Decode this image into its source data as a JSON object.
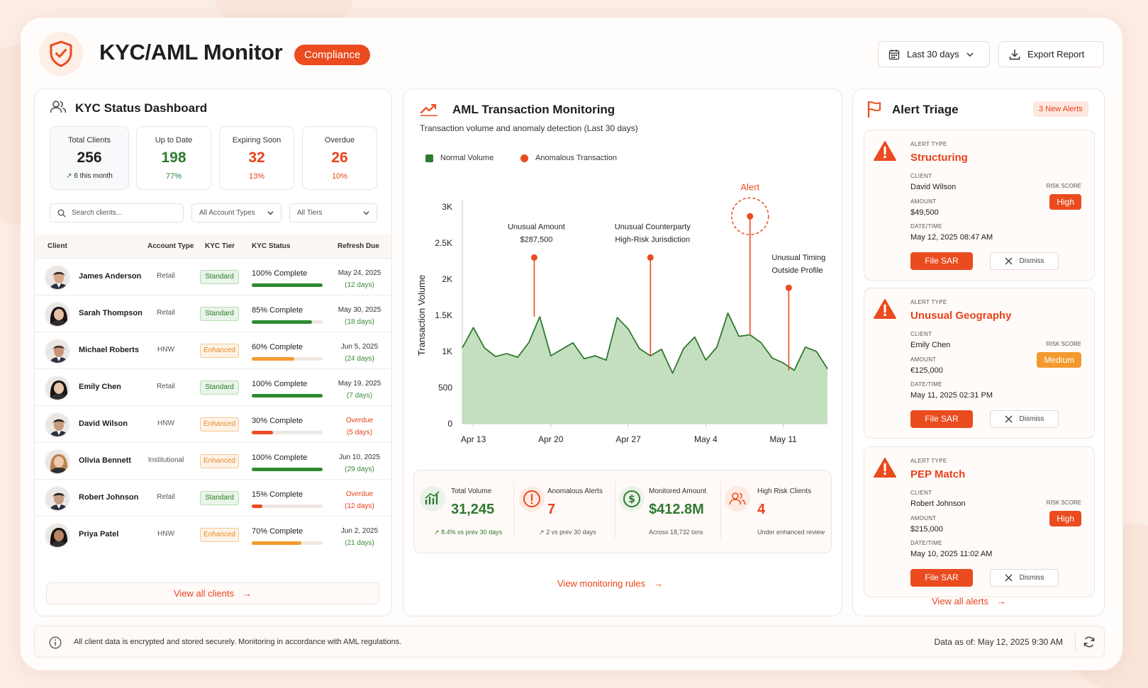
{
  "header": {
    "title": "KYC/AML Monitor",
    "badge": "Compliance",
    "date_range": "Last 30 days",
    "export": "Export Report"
  },
  "kyc": {
    "title": "KYC Status Dashboard",
    "stats": [
      {
        "label": "Total Clients",
        "value": "256",
        "sub": "6 this month"
      },
      {
        "label": "Up to Date",
        "value": "198",
        "sub": "77%"
      },
      {
        "label": "Expiring Soon",
        "value": "32",
        "sub": "13%"
      },
      {
        "label": "Overdue",
        "value": "26",
        "sub": "10%"
      }
    ],
    "search_placeholder": "Search clients...",
    "filter_type": "All Account Types",
    "filter_tier": "All Tiers",
    "columns": [
      "Client",
      "Account Type",
      "KYC Tier",
      "KYC Status",
      "Refresh Due"
    ],
    "rows": [
      {
        "name": "James Anderson",
        "type": "Retail",
        "tier": "Standard",
        "status": "100% Complete",
        "progress": 1.0,
        "due": "May 24, 2025",
        "due_sub": "(12 days)",
        "overdue": false
      },
      {
        "name": "Sarah Thompson",
        "type": "Retail",
        "tier": "Standard",
        "status": "85% Complete",
        "progress": 0.85,
        "due": "May 30, 2025",
        "due_sub": "(18 days)",
        "overdue": false
      },
      {
        "name": "Michael Roberts",
        "type": "HNW",
        "tier": "Enhanced",
        "status": "60% Complete",
        "progress": 0.6,
        "due": "Jun 5, 2025",
        "due_sub": "(24 days)",
        "overdue": false
      },
      {
        "name": "Emily Chen",
        "type": "Retail",
        "tier": "Standard",
        "status": "100% Complete",
        "progress": 1.0,
        "due": "May 19, 2025",
        "due_sub": "(7 days)",
        "overdue": false
      },
      {
        "name": "David Wilson",
        "type": "HNW",
        "tier": "Enhanced",
        "status": "30% Complete",
        "progress": 0.3,
        "due": "Overdue",
        "due_sub": "(5 days)",
        "overdue": true
      },
      {
        "name": "Olivia Bennett",
        "type": "Institutional",
        "tier": "Enhanced",
        "status": "100% Complete",
        "progress": 1.0,
        "due": "Jun 10, 2025",
        "due_sub": "(29 days)",
        "overdue": false
      },
      {
        "name": "Robert Johnson",
        "type": "Retail",
        "tier": "Standard",
        "status": "15% Complete",
        "progress": 0.15,
        "due": "Overdue",
        "due_sub": "(12 days)",
        "overdue": true
      },
      {
        "name": "Priya Patel",
        "type": "HNW",
        "tier": "Enhanced",
        "status": "70% Complete",
        "progress": 0.7,
        "due": "Jun 2, 2025",
        "due_sub": "(21 days)",
        "overdue": false
      }
    ],
    "view_all": "View all clients"
  },
  "aml": {
    "title": "AML Transaction Monitoring",
    "subtitle": "Transaction volume and anomaly detection (Last 30 days)",
    "legend_normal": "Normal Volume",
    "legend_anomaly": "Anomalous Transaction",
    "kpis": [
      {
        "label": "Total Volume",
        "value": "31,245",
        "sub": "8.4% vs prev 30 days"
      },
      {
        "label": "Anomalous Alerts",
        "value": "7",
        "sub": "2 vs prev 30 days"
      },
      {
        "label": "Monitored Amount",
        "value": "$412.8M",
        "sub": "Across 18,732 txns"
      },
      {
        "label": "High Risk Clients",
        "value": "4",
        "sub": "Under enhanced review"
      }
    ],
    "view_rules": "View monitoring rules"
  },
  "chart_data": {
    "type": "area",
    "ylabel": "Transaction Volume",
    "xlabel": "",
    "ylim": [
      0,
      3000
    ],
    "y_ticks": [
      "0",
      "500",
      "1K",
      "1.5K",
      "2K",
      "2.5K",
      "3K"
    ],
    "x_tick_labels": [
      "Apr 13",
      "Apr 20",
      "Apr 27",
      "May 4",
      "May 11"
    ],
    "x_tick_days": [
      1,
      8,
      15,
      22,
      29
    ],
    "series": [
      {
        "name": "Normal Volume",
        "color": "#8fc38a",
        "values": [
          1050,
          1330,
          1050,
          930,
          970,
          920,
          1120,
          1480,
          940,
          1030,
          1120,
          900,
          940,
          880,
          1470,
          1310,
          1040,
          940,
          1030,
          700,
          1040,
          1200,
          880,
          1060,
          1530,
          1210,
          1230,
          1120,
          910,
          840,
          740,
          1060,
          1000,
          760
        ]
      }
    ],
    "anomalies": [
      {
        "day": 6.5,
        "value": 2300,
        "label": "Unusual Amount",
        "sublabel": "$287,500"
      },
      {
        "day": 17,
        "value": 2300,
        "label": "Unusual Counterparty",
        "sublabel": "High-Risk Jurisdiction"
      },
      {
        "day": 26,
        "value": 2870,
        "label": "Alert",
        "sublabel": ""
      },
      {
        "day": 29.5,
        "value": 1880,
        "label": "Unusual Timing",
        "sublabel": "Outside Profile"
      }
    ],
    "colors": {
      "area": "#c4dfc0",
      "line": "#2f7a2f",
      "anomaly": "#ea4b1f"
    }
  },
  "alerts": {
    "title": "Alert Triage",
    "badge": "3 New Alerts",
    "labels": {
      "type": "ALERT TYPE",
      "client": "CLIENT",
      "amount": "AMOUNT",
      "datetime": "DATE/TIME",
      "risk": "RISK SCORE"
    },
    "items": [
      {
        "type": "Structuring",
        "client": "David Wilson",
        "amount": "$49,500",
        "datetime": "May 12, 2025 08:47 AM",
        "risk": "High",
        "risk_color": "#ea4b1f"
      },
      {
        "type": "Unusual Geography",
        "client": "Emily Chen",
        "amount": "€125,000",
        "datetime": "May 11, 2025 02:31 PM",
        "risk": "Medium",
        "risk_color": "#f29a2e"
      },
      {
        "type": "PEP Match",
        "client": "Robert Johnson",
        "amount": "$215,000",
        "datetime": "May 10, 2025 11:02 AM",
        "risk": "High",
        "risk_color": "#ea4b1f"
      }
    ],
    "file_sar": "File SAR",
    "dismiss": "Dismiss",
    "view_all": "View all alerts"
  },
  "footer": {
    "note": "All client data is encrypted and stored securely. Monitoring in accordance with AML regulations.",
    "data_as_of": "Data as of: May 12, 2025 9:30 AM"
  }
}
